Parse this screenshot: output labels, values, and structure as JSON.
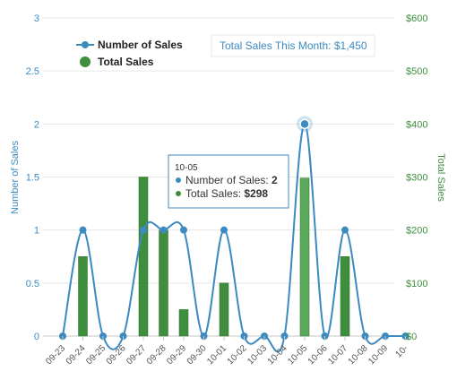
{
  "chart_data": {
    "type": "bar+line",
    "categories": [
      "09-23",
      "09-24",
      "09-25",
      "09-26",
      "09-27",
      "09-28",
      "09-29",
      "09-30",
      "10-01",
      "10-02",
      "10-03",
      "10-04",
      "10-05",
      "10-06",
      "10-07",
      "10-08",
      "10-09",
      "10-"
    ],
    "series": [
      {
        "name": "Number of Sales",
        "type": "spline",
        "axis": "left",
        "color": "#3c8ac0",
        "values": [
          0,
          1,
          0,
          0,
          1,
          1,
          1,
          0,
          1,
          0,
          0,
          0,
          2,
          0,
          1,
          0,
          0,
          0
        ]
      },
      {
        "name": "Total Sales",
        "type": "bar",
        "axis": "right",
        "color": "#3e8e3e",
        "values": [
          0,
          150,
          0,
          0,
          300,
          200,
          50,
          0,
          100,
          0,
          0,
          0,
          298,
          0,
          150,
          0,
          0,
          0
        ]
      }
    ],
    "y_left": {
      "label": "Number of Sales",
      "ticks": [
        "0",
        "0.5",
        "1",
        "1.5",
        "2",
        "2.5",
        "3"
      ],
      "range": [
        0,
        3
      ]
    },
    "y_right": {
      "label": "Total Sales",
      "ticks": [
        "$0",
        "$100",
        "$200",
        "$300",
        "$400",
        "$500",
        "$600"
      ],
      "range": [
        0,
        600
      ]
    },
    "legend_position": "top-left",
    "grid": true,
    "summary": "Total Sales This Month: $1,450",
    "tooltip": {
      "date": "10-05",
      "count_label": "Number of Sales: ",
      "count_value": "2",
      "total_label": "Total Sales: ",
      "total_value": "$298"
    }
  }
}
